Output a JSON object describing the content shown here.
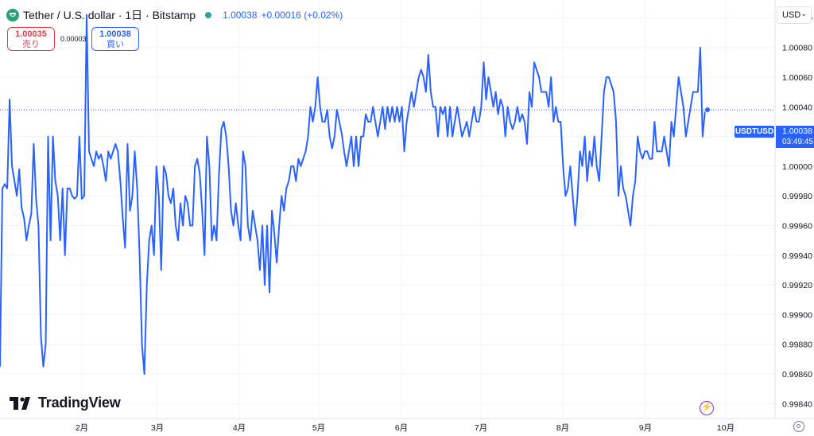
{
  "header": {
    "title": "Tether / U.S. dollar · 1日 · Bitstamp",
    "last_price": "1.00038",
    "change": "+0.00016 (+0.02%)"
  },
  "trade": {
    "sell_price": "1.00035",
    "sell_label": "売り",
    "spread": "0.00003",
    "buy_price": "1.00038",
    "buy_label": "買い"
  },
  "currency_selector": {
    "value": "USD"
  },
  "price_tag": {
    "symbol": "USDTUSD",
    "price": "1.00038",
    "countdown": "03:49:45"
  },
  "logo": {
    "text": "TradingView"
  },
  "colors": {
    "line": "#2962ff",
    "grid": "#f0f3fa",
    "sell": "#f23645",
    "buy": "#2962ff"
  },
  "chart_data": {
    "type": "line",
    "series": [
      {
        "values": [
          0.99865,
          0.99985,
          0.99988,
          0.99985,
          1.00045,
          1.0,
          0.9999,
          0.9998,
          0.99998,
          0.99972,
          0.99965,
          0.9995,
          0.9996,
          0.99968,
          1.00015,
          0.99978,
          0.9996,
          0.99885,
          0.99865,
          0.9988,
          1.0002,
          0.9995,
          1.0002,
          0.9999,
          0.9998,
          0.9995,
          0.99985,
          0.9994,
          0.99985,
          0.99985,
          0.9998,
          0.99978,
          0.9998,
          1.0002,
          0.99978,
          0.9998,
          1.00102,
          1.0001,
          1.00005,
          1.0,
          1.0001,
          1.00005,
          1.00008,
          1.0,
          0.9999,
          1.0001,
          1.00005,
          1.0001,
          1.00015,
          1.0001,
          0.9999,
          0.99965,
          0.99945,
          1.00015,
          0.9997,
          0.9998,
          1.0001,
          0.99985,
          0.9994,
          0.9988,
          0.9986,
          0.9992,
          0.9995,
          0.9996,
          0.9994,
          1.0,
          0.9998,
          0.9993,
          1.0,
          0.99995,
          0.9998,
          0.99975,
          0.99985,
          0.9996,
          0.9995,
          0.99975,
          0.9996,
          0.9998,
          0.99975,
          0.9996,
          0.9996,
          1.0,
          1.00005,
          0.99995,
          0.9997,
          0.9994,
          1.0002,
          1.0,
          0.9995,
          0.9996,
          0.9995,
          0.99995,
          1.00025,
          1.0003,
          1.0002,
          1.0,
          0.9997,
          0.9996,
          0.99975,
          0.9996,
          0.9995,
          1.0001,
          1.0,
          0.9996,
          0.9995,
          0.9997,
          0.9996,
          0.9995,
          0.9993,
          0.9996,
          0.9992,
          0.9996,
          0.99915,
          0.9997,
          0.99955,
          0.99935,
          0.9996,
          0.9998,
          0.9997,
          0.99985,
          0.9999,
          1.0,
          1.0,
          0.9999,
          1.00005,
          1.0,
          1.00005,
          1.0001,
          1.0002,
          1.0004,
          1.0003,
          1.0004,
          1.0006,
          1.0004,
          1.0003,
          1.0003,
          1.00038,
          1.0002,
          1.00012,
          1.0002,
          1.00038,
          1.0003,
          1.00022,
          1.0001,
          1.0,
          1.0001,
          1.0002,
          1.0,
          1.0002,
          1.0,
          1.0002,
          1.0002,
          1.00035,
          1.0003,
          1.0003,
          1.0004,
          1.0003,
          1.0002,
          1.0003,
          1.0004,
          1.00025,
          1.0004,
          1.0003,
          1.0004,
          1.0003,
          1.0004,
          1.0003,
          1.0004,
          1.0001,
          1.0003,
          1.0004,
          1.0005,
          1.0004,
          1.0005,
          1.0006,
          1.00065,
          1.0006,
          1.0005,
          1.00075,
          1.0005,
          1.0004,
          1.0004,
          1.0002,
          1.0004,
          1.00035,
          1.0004,
          1.0002,
          1.0004,
          1.0002,
          1.0003,
          1.0004,
          1.0003,
          1.0002,
          1.00025,
          1.0003,
          1.0002,
          1.0003,
          1.0004,
          1.0003,
          1.0003,
          1.0004,
          1.0007,
          1.00045,
          1.0006,
          1.0005,
          1.0004,
          1.0005,
          1.00035,
          1.00045,
          1.0004,
          1.0002,
          1.0004,
          1.0003,
          1.00025,
          1.0003,
          1.0004,
          1.0003,
          1.00035,
          1.0003,
          1.00015,
          1.0005,
          1.0004,
          1.0007,
          1.00065,
          1.0006,
          1.0005,
          1.0005,
          1.0005,
          1.0004,
          1.0006,
          1.0003,
          1.0004,
          1.0003,
          1.0003,
          1.0,
          0.9998,
          0.99985,
          1.0,
          0.9998,
          0.9996,
          0.9998,
          1.0001,
          1.0,
          1.0002,
          0.9999,
          1.0001,
          1.0,
          1.0002,
          1.0,
          0.9999,
          1.0002,
          1.0005,
          1.0006,
          1.0006,
          1.00055,
          1.0005,
          1.0003,
          0.9998,
          1.0,
          0.99985,
          0.9998,
          0.9997,
          0.9996,
          0.9998,
          0.9999,
          1.0002,
          1.0001,
          1.00005,
          1.0001,
          1.0001,
          1.00005,
          1.00005,
          1.0003,
          1.0001,
          1.0001,
          1.0001,
          1.0002,
          1.0001,
          1.0,
          1.0003,
          1.0002,
          1.0004,
          1.0006,
          1.0005,
          1.0004,
          1.0002,
          1.0003,
          1.0004,
          1.0005,
          1.0005,
          1.0005,
          1.0008,
          1.0002,
          1.00038,
          1.00038
        ]
      }
    ],
    "x_labels": [
      "2月",
      "3月",
      "4月",
      "5月",
      "6月",
      "7月",
      "8月",
      "9月",
      "10月"
    ],
    "y_ticks": [
      "1.00100",
      "1.00080",
      "1.00060",
      "1.00040",
      "1.00020",
      "1.00000",
      "0.99980",
      "0.99960",
      "0.99940",
      "0.99920",
      "0.99900",
      "0.99880",
      "0.99860",
      "0.99840"
    ],
    "ylim": [
      0.9983,
      1.00112
    ],
    "last_value": 1.00038,
    "grid": true
  }
}
